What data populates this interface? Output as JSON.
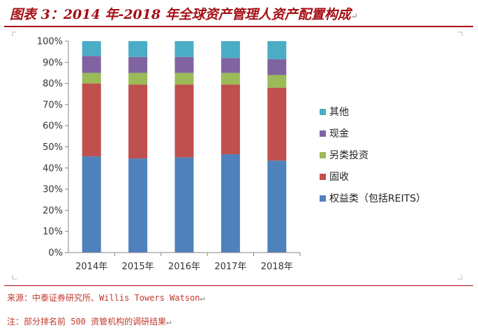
{
  "header": {
    "title": "图表 3：2014 年-2018 年全球资产管理人资产配置构成"
  },
  "chart_data": {
    "type": "bar",
    "stacked": true,
    "categories": [
      "2014年",
      "2015年",
      "2016年",
      "2017年",
      "2018年"
    ],
    "series": [
      {
        "name": "权益类（包括REITS）",
        "color": "#4f81bd",
        "values": [
          45.5,
          44.5,
          45,
          46.5,
          43.5
        ]
      },
      {
        "name": "固收",
        "color": "#c0504d",
        "values": [
          34.5,
          35,
          34.5,
          33,
          34.5
        ]
      },
      {
        "name": "另类投资",
        "color": "#9bbb59",
        "values": [
          5,
          5.5,
          5.5,
          5.5,
          6
        ]
      },
      {
        "name": "现金",
        "color": "#8064a2",
        "values": [
          8,
          7.5,
          7.5,
          7,
          7.5
        ]
      },
      {
        "name": "其他",
        "color": "#4bacc6",
        "values": [
          7,
          7.5,
          7.5,
          8,
          8.5
        ]
      }
    ],
    "ylim": [
      0,
      100
    ],
    "yticks": [
      "0%",
      "10%",
      "20%",
      "30%",
      "40%",
      "50%",
      "60%",
      "70%",
      "80%",
      "90%",
      "100%"
    ],
    "legend_position": "right",
    "grid": false
  },
  "footer": {
    "source": "来源：中泰证券研究所、Willis  Towers Watson",
    "note": "注：部分排名前 500 资管机构的调研结果"
  }
}
